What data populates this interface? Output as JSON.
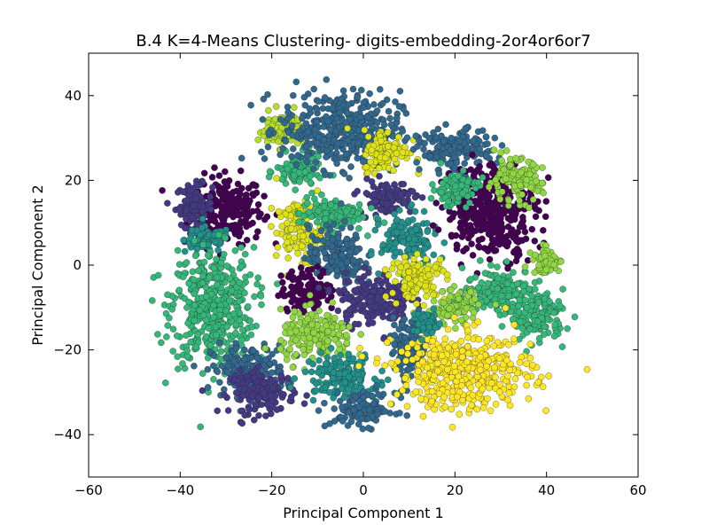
{
  "chart_data": {
    "type": "scatter",
    "title": "B.4 K=4-Means Clustering- digits-embedding-2or4or6or7",
    "xlabel": "Principal Component 1",
    "ylabel": "Principal Component 2",
    "xlim": [
      -60,
      60
    ],
    "ylim": [
      -50,
      50
    ],
    "xticks": [
      "−60",
      "−40",
      "−20",
      "0",
      "20",
      "40",
      "60"
    ],
    "yticks": [
      "−40",
      "−20",
      "0",
      "20",
      "40"
    ],
    "xtick_values": [
      -60,
      -40,
      -20,
      0,
      20,
      40,
      60
    ],
    "ytick_values": [
      -40,
      -20,
      0,
      20,
      40
    ],
    "grid": false,
    "legend": "none",
    "colormap": [
      "#440154",
      "#443983",
      "#31688e",
      "#21918c",
      "#35b779",
      "#90d743",
      "#b5de2b",
      "#dde318",
      "#fde725"
    ],
    "clusters": [
      {
        "cx": -30,
        "cy": 13,
        "rx": 8,
        "ry": 8,
        "color": "#440154"
      },
      {
        "cx": -37,
        "cy": 14,
        "rx": 4,
        "ry": 5,
        "color": "#443983"
      },
      {
        "cx": -34,
        "cy": 6,
        "rx": 5,
        "ry": 3,
        "color": "#21918c"
      },
      {
        "cx": -33,
        "cy": -10,
        "rx": 9,
        "ry": 14,
        "color": "#35b779"
      },
      {
        "cx": -25,
        "cy": -25,
        "rx": 8,
        "ry": 6,
        "color": "#31688e"
      },
      {
        "cx": -22,
        "cy": -30,
        "rx": 7,
        "ry": 5,
        "color": "#443983"
      },
      {
        "cx": -18,
        "cy": 32,
        "rx": 5,
        "ry": 4,
        "color": "#b5de2b"
      },
      {
        "cx": -14,
        "cy": 22,
        "rx": 5,
        "ry": 4,
        "color": "#35b779"
      },
      {
        "cx": -5,
        "cy": 32,
        "rx": 13,
        "ry": 9,
        "color": "#31688e"
      },
      {
        "cx": 5,
        "cy": 27,
        "rx": 5,
        "ry": 5,
        "color": "#dde318"
      },
      {
        "cx": 5,
        "cy": 16,
        "rx": 6,
        "ry": 4,
        "color": "#443983"
      },
      {
        "cx": -14,
        "cy": 8,
        "rx": 5,
        "ry": 7,
        "color": "#dde318"
      },
      {
        "cx": -7,
        "cy": 12,
        "rx": 7,
        "ry": 4,
        "color": "#35b779"
      },
      {
        "cx": -6,
        "cy": 2,
        "rx": 6,
        "ry": 7,
        "color": "#31688e"
      },
      {
        "cx": -12,
        "cy": -6,
        "rx": 6,
        "ry": 5,
        "color": "#440154"
      },
      {
        "cx": 2,
        "cy": -8,
        "rx": 8,
        "ry": 6,
        "color": "#443983"
      },
      {
        "cx": -10,
        "cy": -17,
        "rx": 8,
        "ry": 6,
        "color": "#90d743"
      },
      {
        "cx": -5,
        "cy": -26,
        "rx": 8,
        "ry": 5,
        "color": "#21918c"
      },
      {
        "cx": 0,
        "cy": -34,
        "rx": 7,
        "ry": 4,
        "color": "#31688e"
      },
      {
        "cx": 10,
        "cy": -20,
        "rx": 4,
        "ry": 8,
        "color": "#31688e"
      },
      {
        "cx": 10,
        "cy": 6,
        "rx": 6,
        "ry": 6,
        "color": "#21918c"
      },
      {
        "cx": 20,
        "cy": 27,
        "rx": 8,
        "ry": 5,
        "color": "#31688e"
      },
      {
        "cx": 28,
        "cy": 13,
        "rx": 10,
        "ry": 11,
        "color": "#440154"
      },
      {
        "cx": 20,
        "cy": 18,
        "rx": 5,
        "ry": 4,
        "color": "#35b779"
      },
      {
        "cx": 33,
        "cy": 20,
        "rx": 6,
        "ry": 5,
        "color": "#90d743"
      },
      {
        "cx": 12,
        "cy": -3,
        "rx": 6,
        "ry": 5,
        "color": "#dde318"
      },
      {
        "cx": 30,
        "cy": -6,
        "rx": 8,
        "ry": 5,
        "color": "#35b779"
      },
      {
        "cx": 38,
        "cy": -12,
        "rx": 6,
        "ry": 6,
        "color": "#35b779"
      },
      {
        "cx": 20,
        "cy": -10,
        "rx": 5,
        "ry": 4,
        "color": "#90d743"
      },
      {
        "cx": 22,
        "cy": -25,
        "rx": 15,
        "ry": 9,
        "color": "#fde725"
      },
      {
        "cx": 14,
        "cy": -14,
        "rx": 3,
        "ry": 3,
        "color": "#21918c"
      },
      {
        "cx": 40,
        "cy": 1,
        "rx": 3,
        "ry": 3,
        "color": "#90d743"
      }
    ]
  }
}
